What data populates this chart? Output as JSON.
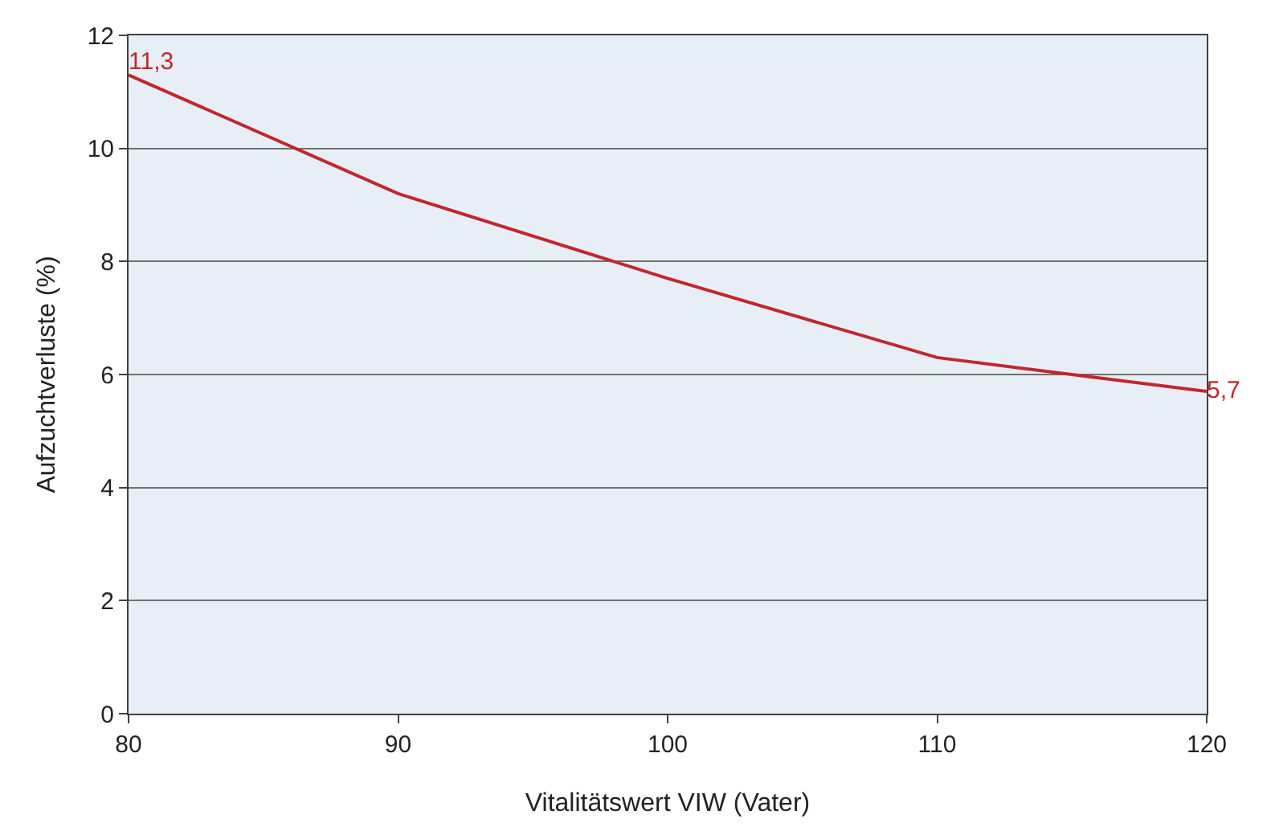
{
  "chart_data": {
    "type": "line",
    "xlabel": "Vitalitätswert VIW (Vater)",
    "ylabel": "Aufzuchtverluste (%)",
    "x": [
      80,
      90,
      100,
      110,
      120
    ],
    "series": [
      {
        "color": "#c0272d",
        "values": [
          11.3,
          9.2,
          7.7,
          6.3,
          5.7
        ],
        "value_labels": [
          "11,3",
          null,
          null,
          null,
          "5,7"
        ]
      }
    ],
    "xlim": [
      80,
      120
    ],
    "xticks": [
      80,
      90,
      100,
      110,
      120
    ],
    "ylim": [
      0,
      12
    ],
    "yticks": [
      0,
      2,
      4,
      6,
      8,
      10,
      12
    ],
    "grid": "y",
    "marker": "none",
    "line_style": "solid"
  }
}
